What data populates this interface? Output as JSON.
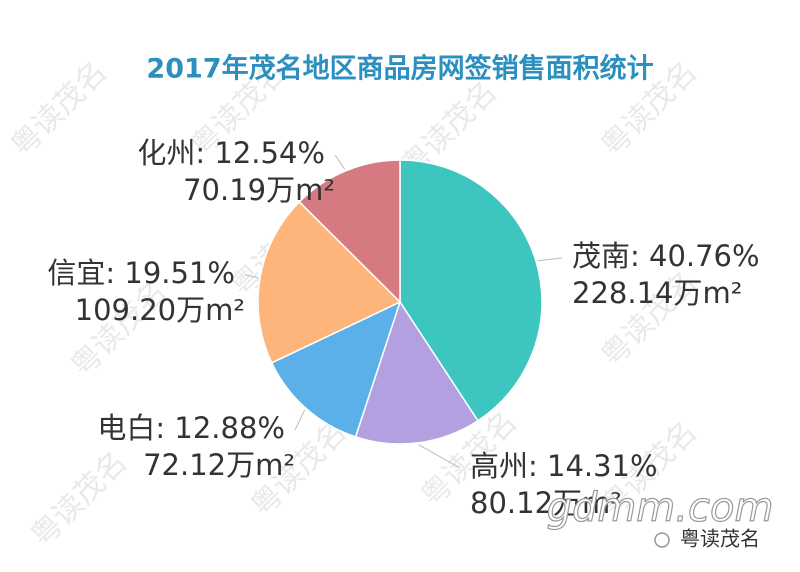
{
  "chart_data": {
    "type": "pie",
    "title": "2017年茂名地区商品房网签销售面积统计",
    "values": [
      40.76,
      14.31,
      12.88,
      19.51,
      12.54
    ],
    "value_labels": [
      "茂南: 40.76%",
      "高州: 14.31%",
      "电白: 12.88%",
      "信宜: 19.51%",
      "化州: 12.54%"
    ],
    "areas": [
      228.14,
      80.12,
      72.12,
      109.2,
      70.19
    ],
    "area_labels": [
      "228.14万m²",
      "80.12万m²",
      "72.12万m²",
      "109.20万m²",
      "70.19万m²"
    ],
    "colors": [
      "#3dc6bf",
      "#b3a0e0",
      "#5cb0ea",
      "#fdb57c",
      "#d57a80"
    ],
    "watermark": "粤读茂名",
    "site": "gdmm.com"
  }
}
